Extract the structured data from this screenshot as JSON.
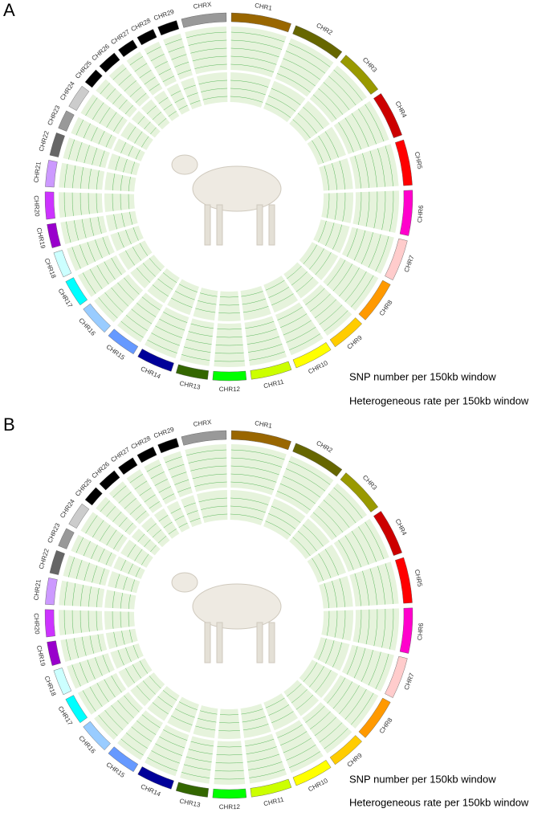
{
  "panels": [
    {
      "label": "A",
      "legend": [
        "SNP number per 150kb window",
        "Heterogeneous rate per 150kb window"
      ]
    },
    {
      "label": "B",
      "legend": [
        "SNP number per 150kb window",
        "Heterogeneous rate per 150kb window"
      ]
    }
  ],
  "chromosomes": [
    {
      "name": "CHR1",
      "color": "#996600",
      "length": 157
    },
    {
      "name": "CHR2",
      "color": "#666600",
      "length": 137
    },
    {
      "name": "CHR3",
      "color": "#999900",
      "length": 121
    },
    {
      "name": "CHR4",
      "color": "#cc0000",
      "length": 120
    },
    {
      "name": "CHR5",
      "color": "#ff0000",
      "length": 119
    },
    {
      "name": "CHR6",
      "color": "#ff00cc",
      "length": 118
    },
    {
      "name": "CHR7",
      "color": "#ffcccc",
      "length": 108
    },
    {
      "name": "CHR8",
      "color": "#ff9900",
      "length": 112
    },
    {
      "name": "CHR9",
      "color": "#ffcc00",
      "length": 91
    },
    {
      "name": "CHR10",
      "color": "#ffff00",
      "length": 101
    },
    {
      "name": "CHR11",
      "color": "#ccff00",
      "length": 106
    },
    {
      "name": "CHR12",
      "color": "#00ff00",
      "length": 87
    },
    {
      "name": "CHR13",
      "color": "#336600",
      "length": 83
    },
    {
      "name": "CHR14",
      "color": "#000099",
      "length": 94
    },
    {
      "name": "CHR15",
      "color": "#6699ff",
      "length": 80
    },
    {
      "name": "CHR16",
      "color": "#99ccff",
      "length": 81
    },
    {
      "name": "CHR17",
      "color": "#00ffff",
      "length": 71
    },
    {
      "name": "CHR18",
      "color": "#ccffff",
      "length": 67
    },
    {
      "name": "CHR19",
      "color": "#9900cc",
      "length": 62
    },
    {
      "name": "CHR20",
      "color": "#cc33ff",
      "length": 71
    },
    {
      "name": "CHR21",
      "color": "#cc99ff",
      "length": 69
    },
    {
      "name": "CHR22",
      "color": "#666666",
      "length": 60
    },
    {
      "name": "CHR23",
      "color": "#999999",
      "length": 49
    },
    {
      "name": "CHR24",
      "color": "#cccccc",
      "length": 62
    },
    {
      "name": "CHR25",
      "color": "#000000",
      "length": 42
    },
    {
      "name": "CHR26",
      "color": "#000000",
      "length": 51
    },
    {
      "name": "CHR27",
      "color": "#000000",
      "length": 45
    },
    {
      "name": "CHR28",
      "color": "#000000",
      "length": 46
    },
    {
      "name": "CHR29",
      "color": "#000000",
      "length": 51
    },
    {
      "name": "CHRX",
      "color": "#999999",
      "length": 117
    }
  ]
}
